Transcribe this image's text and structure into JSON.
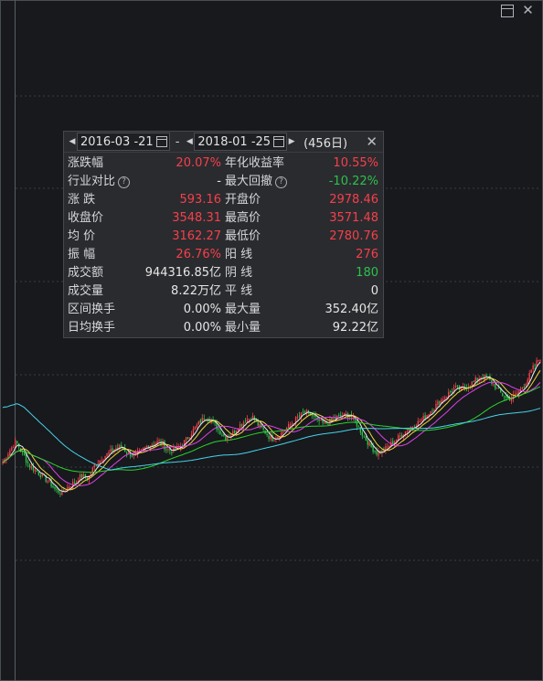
{
  "window": {
    "restore_icon": "restore-icon",
    "close_icon": "close-icon"
  },
  "colors": {
    "background": "#17191d",
    "up": "#f5404a",
    "down": "#2dc24b",
    "ma5": "#f0f0f0",
    "ma10": "#f2d43c",
    "ma20": "#e040e8",
    "ma60": "#2bd32b",
    "ma120": "#48d4e8"
  },
  "range": {
    "start_date": "2016-03 -21",
    "end_date": "2018-01 -25",
    "separator": "-",
    "days": "(456日)"
  },
  "stats": [
    {
      "label": "涨跌幅",
      "value": "20.07%",
      "color": "red",
      "help": false
    },
    {
      "label": "年化收益率",
      "value": "10.55%",
      "color": "red",
      "help": false
    },
    {
      "label": "行业对比",
      "value": "-",
      "color": "white",
      "help": true
    },
    {
      "label": "最大回撤",
      "value": "-10.22%",
      "color": "green",
      "help": true
    },
    {
      "label": "涨  跌",
      "value": "593.16",
      "color": "red",
      "help": false
    },
    {
      "label": "开盘价",
      "value": "2978.46",
      "color": "red",
      "help": false
    },
    {
      "label": "收盘价",
      "value": "3548.31",
      "color": "red",
      "help": false
    },
    {
      "label": "最高价",
      "value": "3571.48",
      "color": "red",
      "help": false
    },
    {
      "label": "均  价",
      "value": "3162.27",
      "color": "red",
      "help": false
    },
    {
      "label": "最低价",
      "value": "2780.76",
      "color": "red",
      "help": false
    },
    {
      "label": "振  幅",
      "value": "26.76%",
      "color": "red",
      "help": false
    },
    {
      "label": "阳  线",
      "value": "276",
      "color": "red",
      "help": false
    },
    {
      "label": "成交额",
      "value": "944316.85亿",
      "color": "white",
      "help": false
    },
    {
      "label": "阴  线",
      "value": "180",
      "color": "green",
      "help": false
    },
    {
      "label": "成交量",
      "value": "8.22万亿",
      "color": "white",
      "help": false
    },
    {
      "label": "平  线",
      "value": "0",
      "color": "white",
      "help": false
    },
    {
      "label": "区间换手",
      "value": "0.00%",
      "color": "white",
      "help": false
    },
    {
      "label": "最大量",
      "value": "352.40亿",
      "color": "white",
      "help": false
    },
    {
      "label": "日均换手",
      "value": "0.00%",
      "color": "white",
      "help": false
    },
    {
      "label": "最小量",
      "value": "92.22亿",
      "color": "white",
      "help": false
    }
  ],
  "chart_data": {
    "type": "candlestick",
    "description_note": "",
    "start": "2016-03-21",
    "end": "2018-01-25",
    "trading_days": 456,
    "open": 2978.46,
    "close": 3548.31,
    "high": 3571.48,
    "low": 2780.76,
    "close_path": [
      3000,
      3060,
      3110,
      3050,
      2985,
      2960,
      2930,
      2900,
      2860,
      2840,
      2875,
      2900,
      2930,
      2920,
      2985,
      3020,
      3045,
      3070,
      3085,
      3050,
      3035,
      3055,
      3085,
      3100,
      3110,
      3070,
      3060,
      3080,
      3120,
      3165,
      3210,
      3240,
      3215,
      3165,
      3130,
      3150,
      3190,
      3220,
      3240,
      3195,
      3160,
      3120,
      3140,
      3170,
      3200,
      3235,
      3260,
      3250,
      3220,
      3200,
      3215,
      3235,
      3245,
      3250,
      3200,
      3140,
      3090,
      3050,
      3060,
      3090,
      3120,
      3150,
      3180,
      3200,
      3225,
      3260,
      3295,
      3330,
      3360,
      3390,
      3380,
      3400,
      3425,
      3450,
      3440,
      3400,
      3360,
      3330,
      3345,
      3380,
      3430,
      3500,
      3548
    ],
    "ma_series": [
      "MA5",
      "MA10",
      "MA20",
      "MA60",
      "MA120"
    ]
  }
}
